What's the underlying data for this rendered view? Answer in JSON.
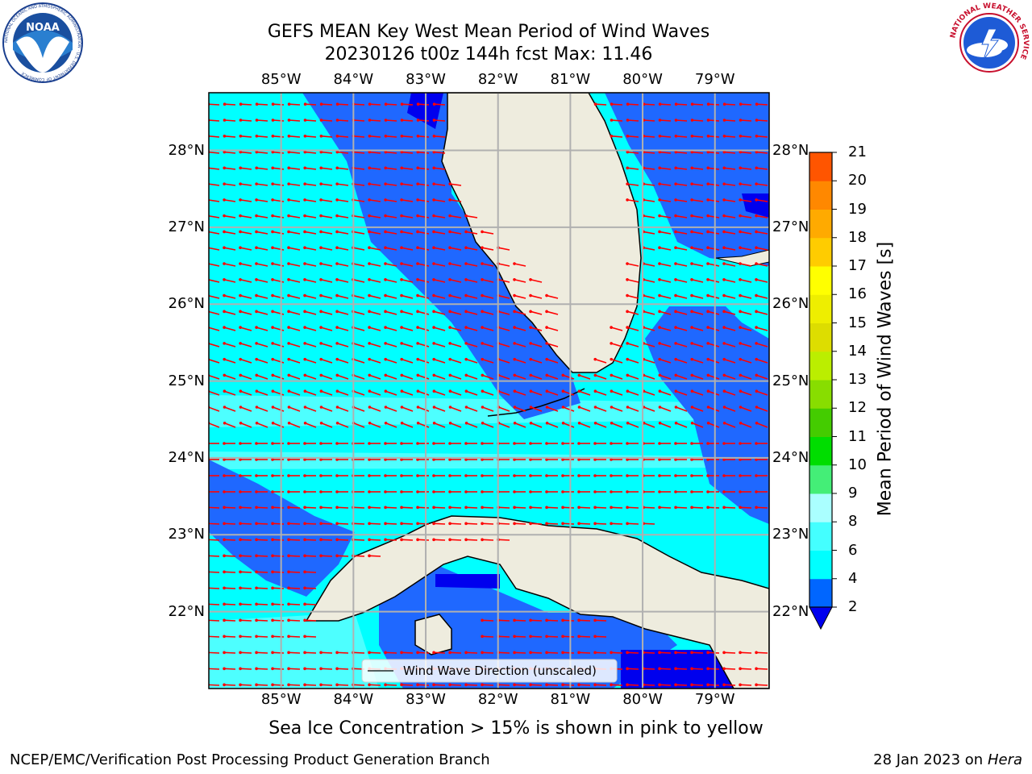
{
  "title": {
    "line1": "GEFS MEAN Key West Mean Period of Wind Waves",
    "line2": "20230126 t00z 144h fcst   Max: 11.46"
  },
  "logos": {
    "noaa_text": "NOAA",
    "noaa_ring": "NATIONAL OCEANIC AND ATMOSPHERIC ADMINISTRATION · U.S. DEPARTMENT OF COMMERCE",
    "nws_ring": "NATIONAL WEATHER SERVICE"
  },
  "map": {
    "lon_labels": [
      "85°W",
      "84°W",
      "83°W",
      "82°W",
      "81°W",
      "80°W",
      "79°W"
    ],
    "lat_labels": [
      "28°N",
      "27°N",
      "26°N",
      "25°N",
      "24°N",
      "23°N",
      "22°N"
    ],
    "legend_label": "Wind Wave Direction (unscaled)",
    "extent": {
      "lon_min": -86.0,
      "lon_max": -78.25,
      "lat_min": 21.0,
      "lat_max": 28.75
    },
    "colors": {
      "land": "#eeecde",
      "band_2_4": "#1f68ff",
      "band_4_6": "#00ffff",
      "band_6_8": "#4dffff",
      "band_lt2": "#0000ee",
      "arrow": "#ff0000"
    }
  },
  "colorbar": {
    "label": "Mean Period of Wind Waves [s]",
    "ticks": [
      "2",
      "4",
      "6",
      "8",
      "9",
      "10",
      "11",
      "12",
      "13",
      "14",
      "15",
      "16",
      "17",
      "18",
      "19",
      "20",
      "21"
    ],
    "colors": [
      "#0066ff",
      "#00ffff",
      "#44ffff",
      "#aaffff",
      "#44ee77",
      "#00dd00",
      "#44cc00",
      "#88dd00",
      "#bbee00",
      "#dddd00",
      "#eeee00",
      "#ffff00",
      "#ffcc00",
      "#ffaa00",
      "#ff8800",
      "#ff5500",
      "#ff2200",
      "#ff0000"
    ],
    "extend_color": "#0000ee"
  },
  "chart_data": {
    "type": "heatmap",
    "title": "GEFS MEAN Key West Mean Period of Wind Waves",
    "subtitle": "20230126 t00z 144h fcst   Max: 11.46",
    "units": "s",
    "max_value": 11.46,
    "xlim": [
      -86.0,
      -78.25
    ],
    "ylim": [
      21.0,
      28.75
    ],
    "levels": [
      2,
      4,
      6,
      8,
      9,
      10,
      11,
      12,
      13,
      14,
      15,
      16,
      17,
      18,
      19,
      20,
      21
    ],
    "overlay": "Wind Wave Direction (unscaled)"
  },
  "notes": {
    "sea_ice": "Sea Ice Concentration > 15% is shown in pink to yellow"
  },
  "footer": {
    "left": "NCEP/EMC/Verification Post Processing Product Generation Branch",
    "date": "28 Jan 2023 on",
    "host": "Hera"
  }
}
